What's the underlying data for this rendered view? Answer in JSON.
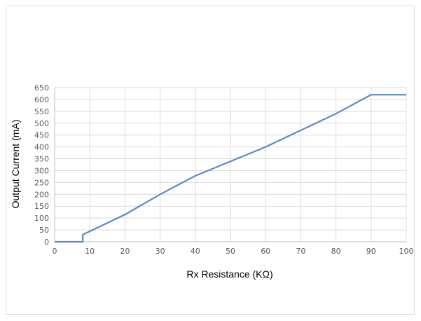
{
  "chart_data": {
    "type": "line",
    "title": "",
    "xlabel": "Rx Resistance (KΩ)",
    "ylabel": "Output Current (mA)",
    "xlim": [
      0,
      100
    ],
    "ylim": [
      0,
      650
    ],
    "x_ticks": [
      0,
      10,
      20,
      30,
      40,
      50,
      60,
      70,
      80,
      90,
      100
    ],
    "y_ticks": [
      0,
      50,
      100,
      150,
      200,
      250,
      300,
      350,
      400,
      450,
      500,
      550,
      600,
      650
    ],
    "grid": true,
    "legend": "none",
    "series": [
      {
        "color": "#5b8bc0",
        "x": [
          0,
          8,
          8,
          20,
          30,
          40,
          60,
          80,
          90,
          100
        ],
        "y": [
          0,
          0,
          30,
          115,
          200,
          278,
          400,
          540,
          620,
          620
        ]
      }
    ]
  }
}
